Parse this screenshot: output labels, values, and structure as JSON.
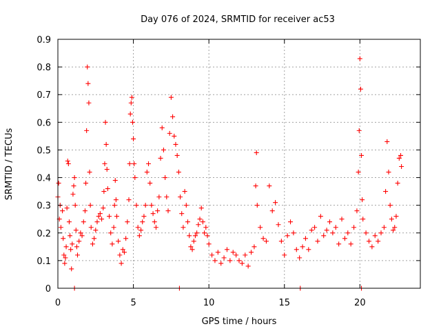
{
  "chart_data": {
    "type": "scatter",
    "title": "Day 076 of 2024, SRMTID for receiver ac53",
    "xlabel": "GPS time / hours",
    "ylabel": "SRMTID / TECUs",
    "xlim": [
      0,
      24
    ],
    "ylim": [
      0,
      0.9
    ],
    "x_ticks": [
      0,
      5,
      10,
      15,
      20
    ],
    "x_tick_labels": [
      "0",
      "5",
      "10",
      "15",
      "20"
    ],
    "y_ticks": [
      0,
      0.1,
      0.2,
      0.3,
      0.4,
      0.5,
      0.6,
      0.7,
      0.8,
      0.9
    ],
    "y_tick_labels": [
      "0",
      "0.1",
      "0.2",
      "0.3",
      "0.4",
      "0.5",
      "0.6",
      "0.7",
      "0.8",
      "0.9"
    ],
    "grid": true,
    "marker": "+",
    "series": [
      {
        "name": "SRMTID",
        "color": "#ff0000",
        "points": [
          [
            0.0,
            0.33
          ],
          [
            0.05,
            0.38
          ],
          [
            0.1,
            0.25
          ],
          [
            0.15,
            0.3
          ],
          [
            0.2,
            0.22
          ],
          [
            0.3,
            0.28
          ],
          [
            0.35,
            0.18
          ],
          [
            0.4,
            0.12
          ],
          [
            0.45,
            0.09
          ],
          [
            0.5,
            0.11
          ],
          [
            0.55,
            0.15
          ],
          [
            0.6,
            0.29
          ],
          [
            0.65,
            0.46
          ],
          [
            0.7,
            0.45
          ],
          [
            0.75,
            0.24
          ],
          [
            0.8,
            0.19
          ],
          [
            0.85,
            0.14
          ],
          [
            0.9,
            0.07
          ],
          [
            0.95,
            0.16
          ],
          [
            1.0,
            0.34
          ],
          [
            1.05,
            0.37
          ],
          [
            1.1,
            0.4
          ],
          [
            1.15,
            0.3
          ],
          [
            1.2,
            0.21
          ],
          [
            1.25,
            0.15
          ],
          [
            1.3,
            0.12
          ],
          [
            1.4,
            0.17
          ],
          [
            1.5,
            0.2
          ],
          [
            1.6,
            0.19
          ],
          [
            1.7,
            0.24
          ],
          [
            1.8,
            0.28
          ],
          [
            1.85,
            0.38
          ],
          [
            1.9,
            0.57
          ],
          [
            1.95,
            0.8
          ],
          [
            2.0,
            0.74
          ],
          [
            2.05,
            0.67
          ],
          [
            2.1,
            0.42
          ],
          [
            2.15,
            0.3
          ],
          [
            2.2,
            0.22
          ],
          [
            2.3,
            0.16
          ],
          [
            2.4,
            0.18
          ],
          [
            2.5,
            0.21
          ],
          [
            2.6,
            0.24
          ],
          [
            2.7,
            0.26
          ],
          [
            2.8,
            0.27
          ],
          [
            2.9,
            0.25
          ],
          [
            3.0,
            0.29
          ],
          [
            3.05,
            0.35
          ],
          [
            3.1,
            0.45
          ],
          [
            3.15,
            0.6
          ],
          [
            3.2,
            0.52
          ],
          [
            3.25,
            0.43
          ],
          [
            3.3,
            0.36
          ],
          [
            3.4,
            0.26
          ],
          [
            3.5,
            0.2
          ],
          [
            3.6,
            0.16
          ],
          [
            3.7,
            0.22
          ],
          [
            3.75,
            0.3
          ],
          [
            3.8,
            0.39
          ],
          [
            3.85,
            0.32
          ],
          [
            3.9,
            0.26
          ],
          [
            4.0,
            0.17
          ],
          [
            4.1,
            0.12
          ],
          [
            4.2,
            0.09
          ],
          [
            4.3,
            0.14
          ],
          [
            4.4,
            0.13
          ],
          [
            4.5,
            0.18
          ],
          [
            4.6,
            0.24
          ],
          [
            4.7,
            0.32
          ],
          [
            4.75,
            0.45
          ],
          [
            4.8,
            0.63
          ],
          [
            4.85,
            0.67
          ],
          [
            4.9,
            0.69
          ],
          [
            4.95,
            0.6
          ],
          [
            5.0,
            0.54
          ],
          [
            5.05,
            0.45
          ],
          [
            5.1,
            0.4
          ],
          [
            5.2,
            0.3
          ],
          [
            5.3,
            0.22
          ],
          [
            5.4,
            0.19
          ],
          [
            5.5,
            0.21
          ],
          [
            5.6,
            0.24
          ],
          [
            5.7,
            0.26
          ],
          [
            5.8,
            0.3
          ],
          [
            5.9,
            0.42
          ],
          [
            6.0,
            0.45
          ],
          [
            6.1,
            0.38
          ],
          [
            6.2,
            0.3
          ],
          [
            6.3,
            0.27
          ],
          [
            6.4,
            0.24
          ],
          [
            6.5,
            0.22
          ],
          [
            6.6,
            0.28
          ],
          [
            6.7,
            0.33
          ],
          [
            6.8,
            0.47
          ],
          [
            6.9,
            0.58
          ],
          [
            7.0,
            0.5
          ],
          [
            7.1,
            0.4
          ],
          [
            7.2,
            0.33
          ],
          [
            7.3,
            0.28
          ],
          [
            7.4,
            0.56
          ],
          [
            7.5,
            0.69
          ],
          [
            7.6,
            0.62
          ],
          [
            7.7,
            0.55
          ],
          [
            7.8,
            0.52
          ],
          [
            7.9,
            0.48
          ],
          [
            8.0,
            0.42
          ],
          [
            8.1,
            0.33
          ],
          [
            8.2,
            0.27
          ],
          [
            8.3,
            0.22
          ],
          [
            8.4,
            0.35
          ],
          [
            8.5,
            0.3
          ],
          [
            8.6,
            0.24
          ],
          [
            8.7,
            0.19
          ],
          [
            8.8,
            0.15
          ],
          [
            8.9,
            0.14
          ],
          [
            9.0,
            0.17
          ],
          [
            9.1,
            0.19
          ],
          [
            9.2,
            0.2
          ],
          [
            9.3,
            0.23
          ],
          [
            9.4,
            0.25
          ],
          [
            9.5,
            0.29
          ],
          [
            9.6,
            0.24
          ],
          [
            9.7,
            0.2
          ],
          [
            9.8,
            0.22
          ],
          [
            9.9,
            0.19
          ],
          [
            10.0,
            0.16
          ],
          [
            10.2,
            0.12
          ],
          [
            10.4,
            0.1
          ],
          [
            10.6,
            0.13
          ],
          [
            10.8,
            0.09
          ],
          [
            11.0,
            0.11
          ],
          [
            11.2,
            0.14
          ],
          [
            11.4,
            0.1
          ],
          [
            11.6,
            0.13
          ],
          [
            11.8,
            0.12
          ],
          [
            12.0,
            0.1
          ],
          [
            12.2,
            0.09
          ],
          [
            12.4,
            0.12
          ],
          [
            12.6,
            0.08
          ],
          [
            12.8,
            0.13
          ],
          [
            13.0,
            0.15
          ],
          [
            13.1,
            0.37
          ],
          [
            13.15,
            0.49
          ],
          [
            13.2,
            0.3
          ],
          [
            13.4,
            0.22
          ],
          [
            13.6,
            0.18
          ],
          [
            13.8,
            0.17
          ],
          [
            14.0,
            0.37
          ],
          [
            14.2,
            0.28
          ],
          [
            14.4,
            0.31
          ],
          [
            14.6,
            0.23
          ],
          [
            14.8,
            0.17
          ],
          [
            15.0,
            0.12
          ],
          [
            15.2,
            0.19
          ],
          [
            15.4,
            0.24
          ],
          [
            15.6,
            0.2
          ],
          [
            15.8,
            0.14
          ],
          [
            16.0,
            0.11
          ],
          [
            16.2,
            0.15
          ],
          [
            16.4,
            0.18
          ],
          [
            16.6,
            0.14
          ],
          [
            16.8,
            0.21
          ],
          [
            17.0,
            0.22
          ],
          [
            17.2,
            0.17
          ],
          [
            17.4,
            0.26
          ],
          [
            17.6,
            0.19
          ],
          [
            17.8,
            0.21
          ],
          [
            18.0,
            0.24
          ],
          [
            18.2,
            0.2
          ],
          [
            18.4,
            0.22
          ],
          [
            18.6,
            0.16
          ],
          [
            18.8,
            0.25
          ],
          [
            19.0,
            0.18
          ],
          [
            19.2,
            0.2
          ],
          [
            19.4,
            0.16
          ],
          [
            19.6,
            0.22
          ],
          [
            19.8,
            0.28
          ],
          [
            19.9,
            0.42
          ],
          [
            19.95,
            0.57
          ],
          [
            20.0,
            0.83
          ],
          [
            20.05,
            0.72
          ],
          [
            20.1,
            0.48
          ],
          [
            20.15,
            0.32
          ],
          [
            20.2,
            0.25
          ],
          [
            20.4,
            0.2
          ],
          [
            20.6,
            0.17
          ],
          [
            20.8,
            0.15
          ],
          [
            21.0,
            0.19
          ],
          [
            21.2,
            0.17
          ],
          [
            21.4,
            0.2
          ],
          [
            21.6,
            0.22
          ],
          [
            21.7,
            0.35
          ],
          [
            21.8,
            0.53
          ],
          [
            21.9,
            0.42
          ],
          [
            22.0,
            0.3
          ],
          [
            22.1,
            0.25
          ],
          [
            22.2,
            0.21
          ],
          [
            22.3,
            0.22
          ],
          [
            22.4,
            0.26
          ],
          [
            22.5,
            0.38
          ],
          [
            22.6,
            0.47
          ],
          [
            22.7,
            0.48
          ],
          [
            22.75,
            0.44
          ],
          [
            1.1,
            0.0
          ],
          [
            8.05,
            0.0
          ],
          [
            16.05,
            0.0
          ],
          [
            20.1,
            0.0
          ]
        ]
      }
    ]
  }
}
